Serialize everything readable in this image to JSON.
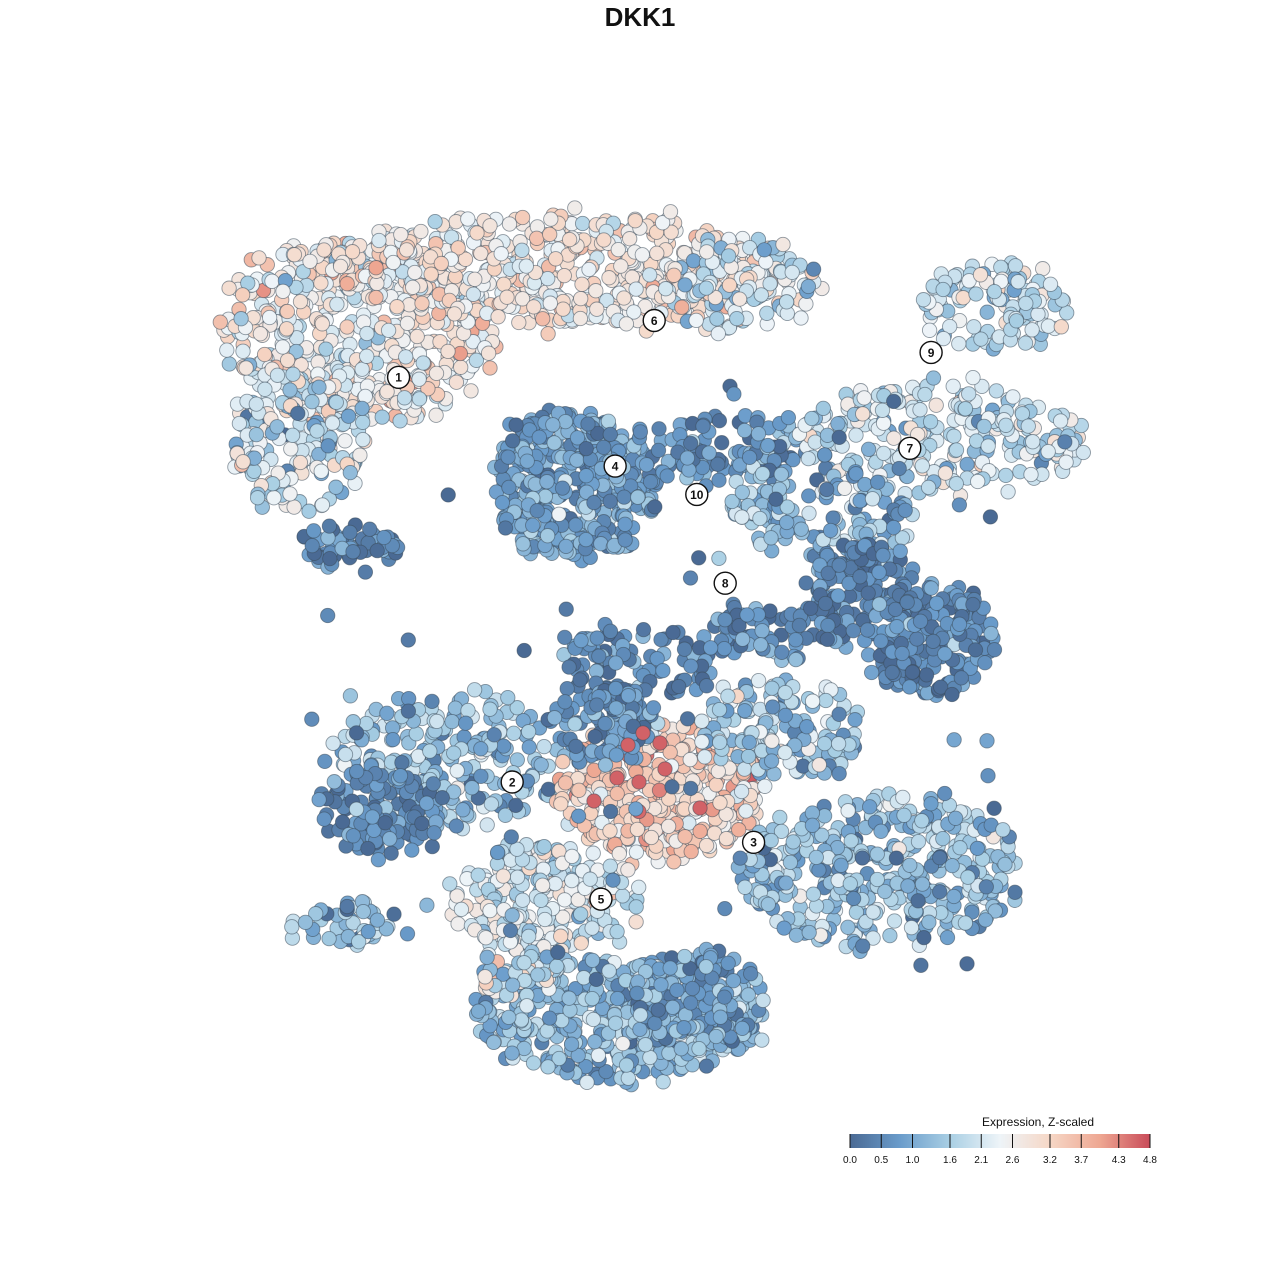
{
  "chart_data": {
    "type": "scatter",
    "title": "DKK1",
    "subtitle": "",
    "xlabel": "",
    "ylabel": "",
    "grid": false,
    "axes_visible": false,
    "color_scale": {
      "title": "Expression, Z-scaled",
      "min": 0.0,
      "max": 4.8,
      "ticks": [
        0.0,
        0.5,
        1.0,
        1.6,
        2.1,
        2.6,
        3.2,
        3.7,
        4.3,
        4.8
      ],
      "tick_labels": [
        "0.0",
        "0.5",
        "1.0",
        "1.6",
        "2.1",
        "2.6",
        "3.2",
        "3.7",
        "4.3",
        "4.8"
      ],
      "palette": [
        "#4a6a94",
        "#6a9ccb",
        "#a9cfe4",
        "#eef4f8",
        "#f6d7c6",
        "#eea792",
        "#c94b59"
      ],
      "legend_position": "bottom-right"
    },
    "clusters": [
      {
        "label": "1",
        "x": -6.8,
        "y": 7.4,
        "mean_expr": 2.5
      },
      {
        "label": "2",
        "x": -3.6,
        "y": -4.0,
        "mean_expr": 1.3
      },
      {
        "label": "3",
        "x": 3.2,
        "y": -5.7,
        "mean_expr": 1.5
      },
      {
        "label": "4",
        "x": -0.7,
        "y": 4.9,
        "mean_expr": 1.0
      },
      {
        "label": "5",
        "x": -1.1,
        "y": -7.3,
        "mean_expr": 1.4
      },
      {
        "label": "6",
        "x": 0.4,
        "y": 9.0,
        "mean_expr": 2.6
      },
      {
        "label": "7",
        "x": 7.6,
        "y": 5.4,
        "mean_expr": 1.9
      },
      {
        "label": "8",
        "x": 2.4,
        "y": 1.6,
        "mean_expr": 0.6
      },
      {
        "label": "9",
        "x": 8.2,
        "y": 8.1,
        "mean_expr": 2.0
      },
      {
        "label": "10",
        "x": 1.6,
        "y": 4.1,
        "mean_expr": 1.4
      }
    ]
  }
}
